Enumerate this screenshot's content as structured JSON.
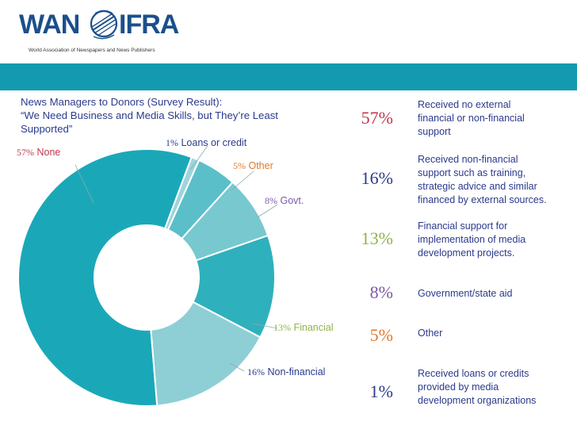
{
  "header": {
    "logo_left": "WAN",
    "logo_right": "IFRA",
    "logo_subtitle": "World Association of Newspapers and News Publishers"
  },
  "colors": {
    "band": "#149ab0",
    "title_text": "#2b3a8c",
    "percent_none": "#c0394b",
    "percent_nonfinancial": "#2b3a8c",
    "percent_financial": "#8fb34a",
    "percent_govt": "#7b5aa6",
    "percent_other": "#e07a2e",
    "percent_loans": "#2b3a8c"
  },
  "chart_data": {
    "type": "pie",
    "donut": true,
    "title_lines": [
      "News Managers to Donors (Survey Result):",
      "“We Need Business and Media Skills, but They’re Least",
      "Supported”"
    ],
    "slices": [
      {
        "label": "None",
        "num": "57%",
        "value": 57,
        "color": "#1aa8b8",
        "label_color": "#c0394b"
      },
      {
        "label": "Loans or credit",
        "num": "1%",
        "value": 1,
        "color": "#9fd4da",
        "label_color": "#2b3a8c"
      },
      {
        "label": "Other",
        "num": "5%",
        "value": 5,
        "color": "#5bbfc9",
        "label_color": "#e07a2e"
      },
      {
        "label": "Govt.",
        "num": "8%",
        "value": 8,
        "color": "#78c8d0",
        "label_color": "#7b5aa6"
      },
      {
        "label": "Financial",
        "num": "13%",
        "value": 13,
        "color": "#2fb0bd",
        "label_color": "#8fb34a"
      },
      {
        "label": "Non-financial",
        "num": "16%",
        "value": 16,
        "color": "#8ecfd5",
        "label_color": "#2b3a8c"
      }
    ]
  },
  "legend": [
    {
      "percent": "57%",
      "lines": [
        "Received no external",
        "financial or non-financial",
        "support"
      ]
    },
    {
      "percent": "16%",
      "lines": [
        "Received non-financial",
        "support such as training,",
        "strategic advice and similar",
        "financed by external sources."
      ]
    },
    {
      "percent": "13%",
      "lines": [
        "Financial support for",
        "implementation  of media",
        "development projects."
      ]
    },
    {
      "percent": "8%",
      "lines": [
        "Government/state aid"
      ]
    },
    {
      "percent": "5%",
      "lines": [
        "Other"
      ]
    },
    {
      "percent": "1%",
      "lines": [
        "Received loans or credits",
        "provided by media",
        "development organizations"
      ]
    }
  ]
}
